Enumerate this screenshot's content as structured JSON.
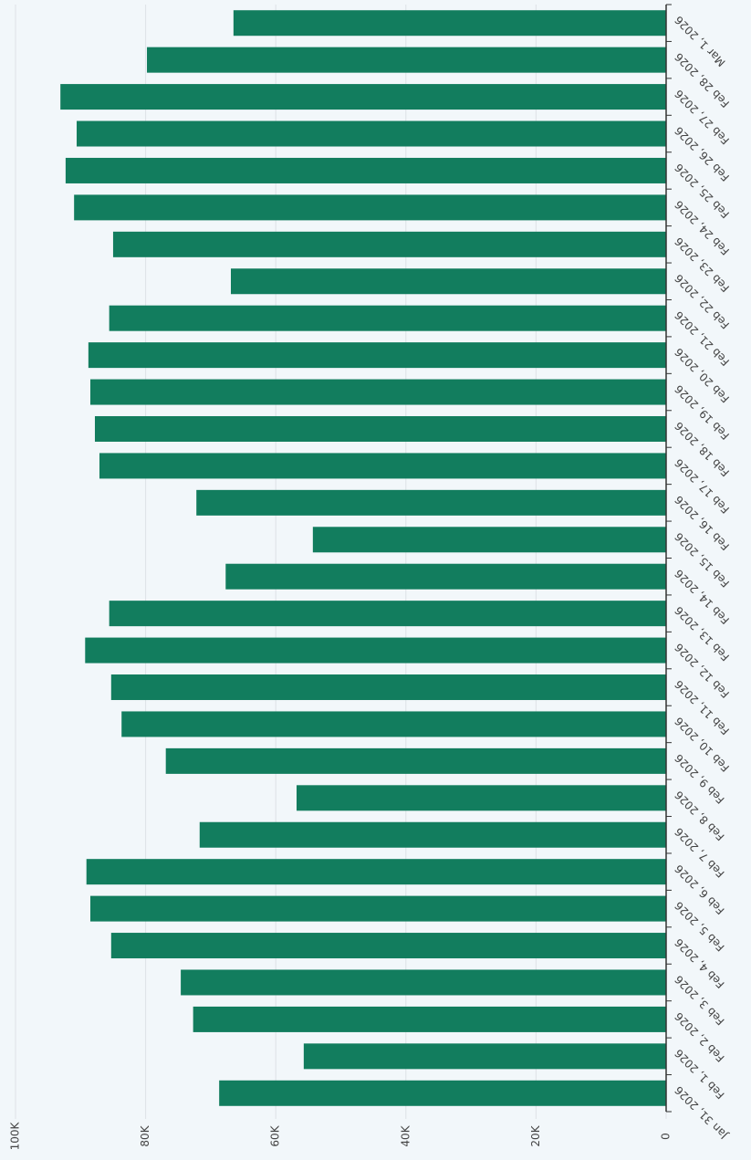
{
  "chart_data": {
    "type": "bar",
    "categories": [
      "Jan 31, 2026",
      "Feb 1, 2026",
      "Feb 2, 2026",
      "Feb 3, 2026",
      "Feb 4, 2026",
      "Feb 5, 2026",
      "Feb 6, 2026",
      "Feb 7, 2026",
      "Feb 8, 2026",
      "Feb 9, 2026",
      "Feb 10, 2026",
      "Feb 11, 2026",
      "Feb 12, 2026",
      "Feb 13, 2026",
      "Feb 14, 2026",
      "Feb 15, 2026",
      "Feb 16, 2026",
      "Feb 17, 2026",
      "Feb 18, 2026",
      "Feb 19, 2026",
      "Feb 20, 2026",
      "Feb 21, 2026",
      "Feb 22, 2026",
      "Feb 23, 2026",
      "Feb 24, 2026",
      "Feb 25, 2026",
      "Feb 26, 2026",
      "Feb 27, 2026",
      "Feb 28, 2026",
      "Mar 1, 2026"
    ],
    "values": [
      68700,
      55700,
      72700,
      74600,
      85300,
      88500,
      89100,
      71700,
      56800,
      76900,
      83700,
      85300,
      89300,
      85600,
      67700,
      54300,
      72200,
      87100,
      87800,
      88500,
      88800,
      85600,
      66900,
      85000,
      91000,
      92300,
      90600,
      93100,
      79800,
      66500
    ],
    "color": "#127d5e",
    "ylim": [
      0,
      100000
    ],
    "yticks": [
      0,
      {
        "value": 20000,
        "label": "20K"
      },
      {
        "value": 40000,
        "label": "40K"
      },
      {
        "value": 60000,
        "label": "60K"
      },
      {
        "value": 80000,
        "label": "80K"
      },
      {
        "value": 100000,
        "label": "100K"
      }
    ],
    "grid": true
  }
}
